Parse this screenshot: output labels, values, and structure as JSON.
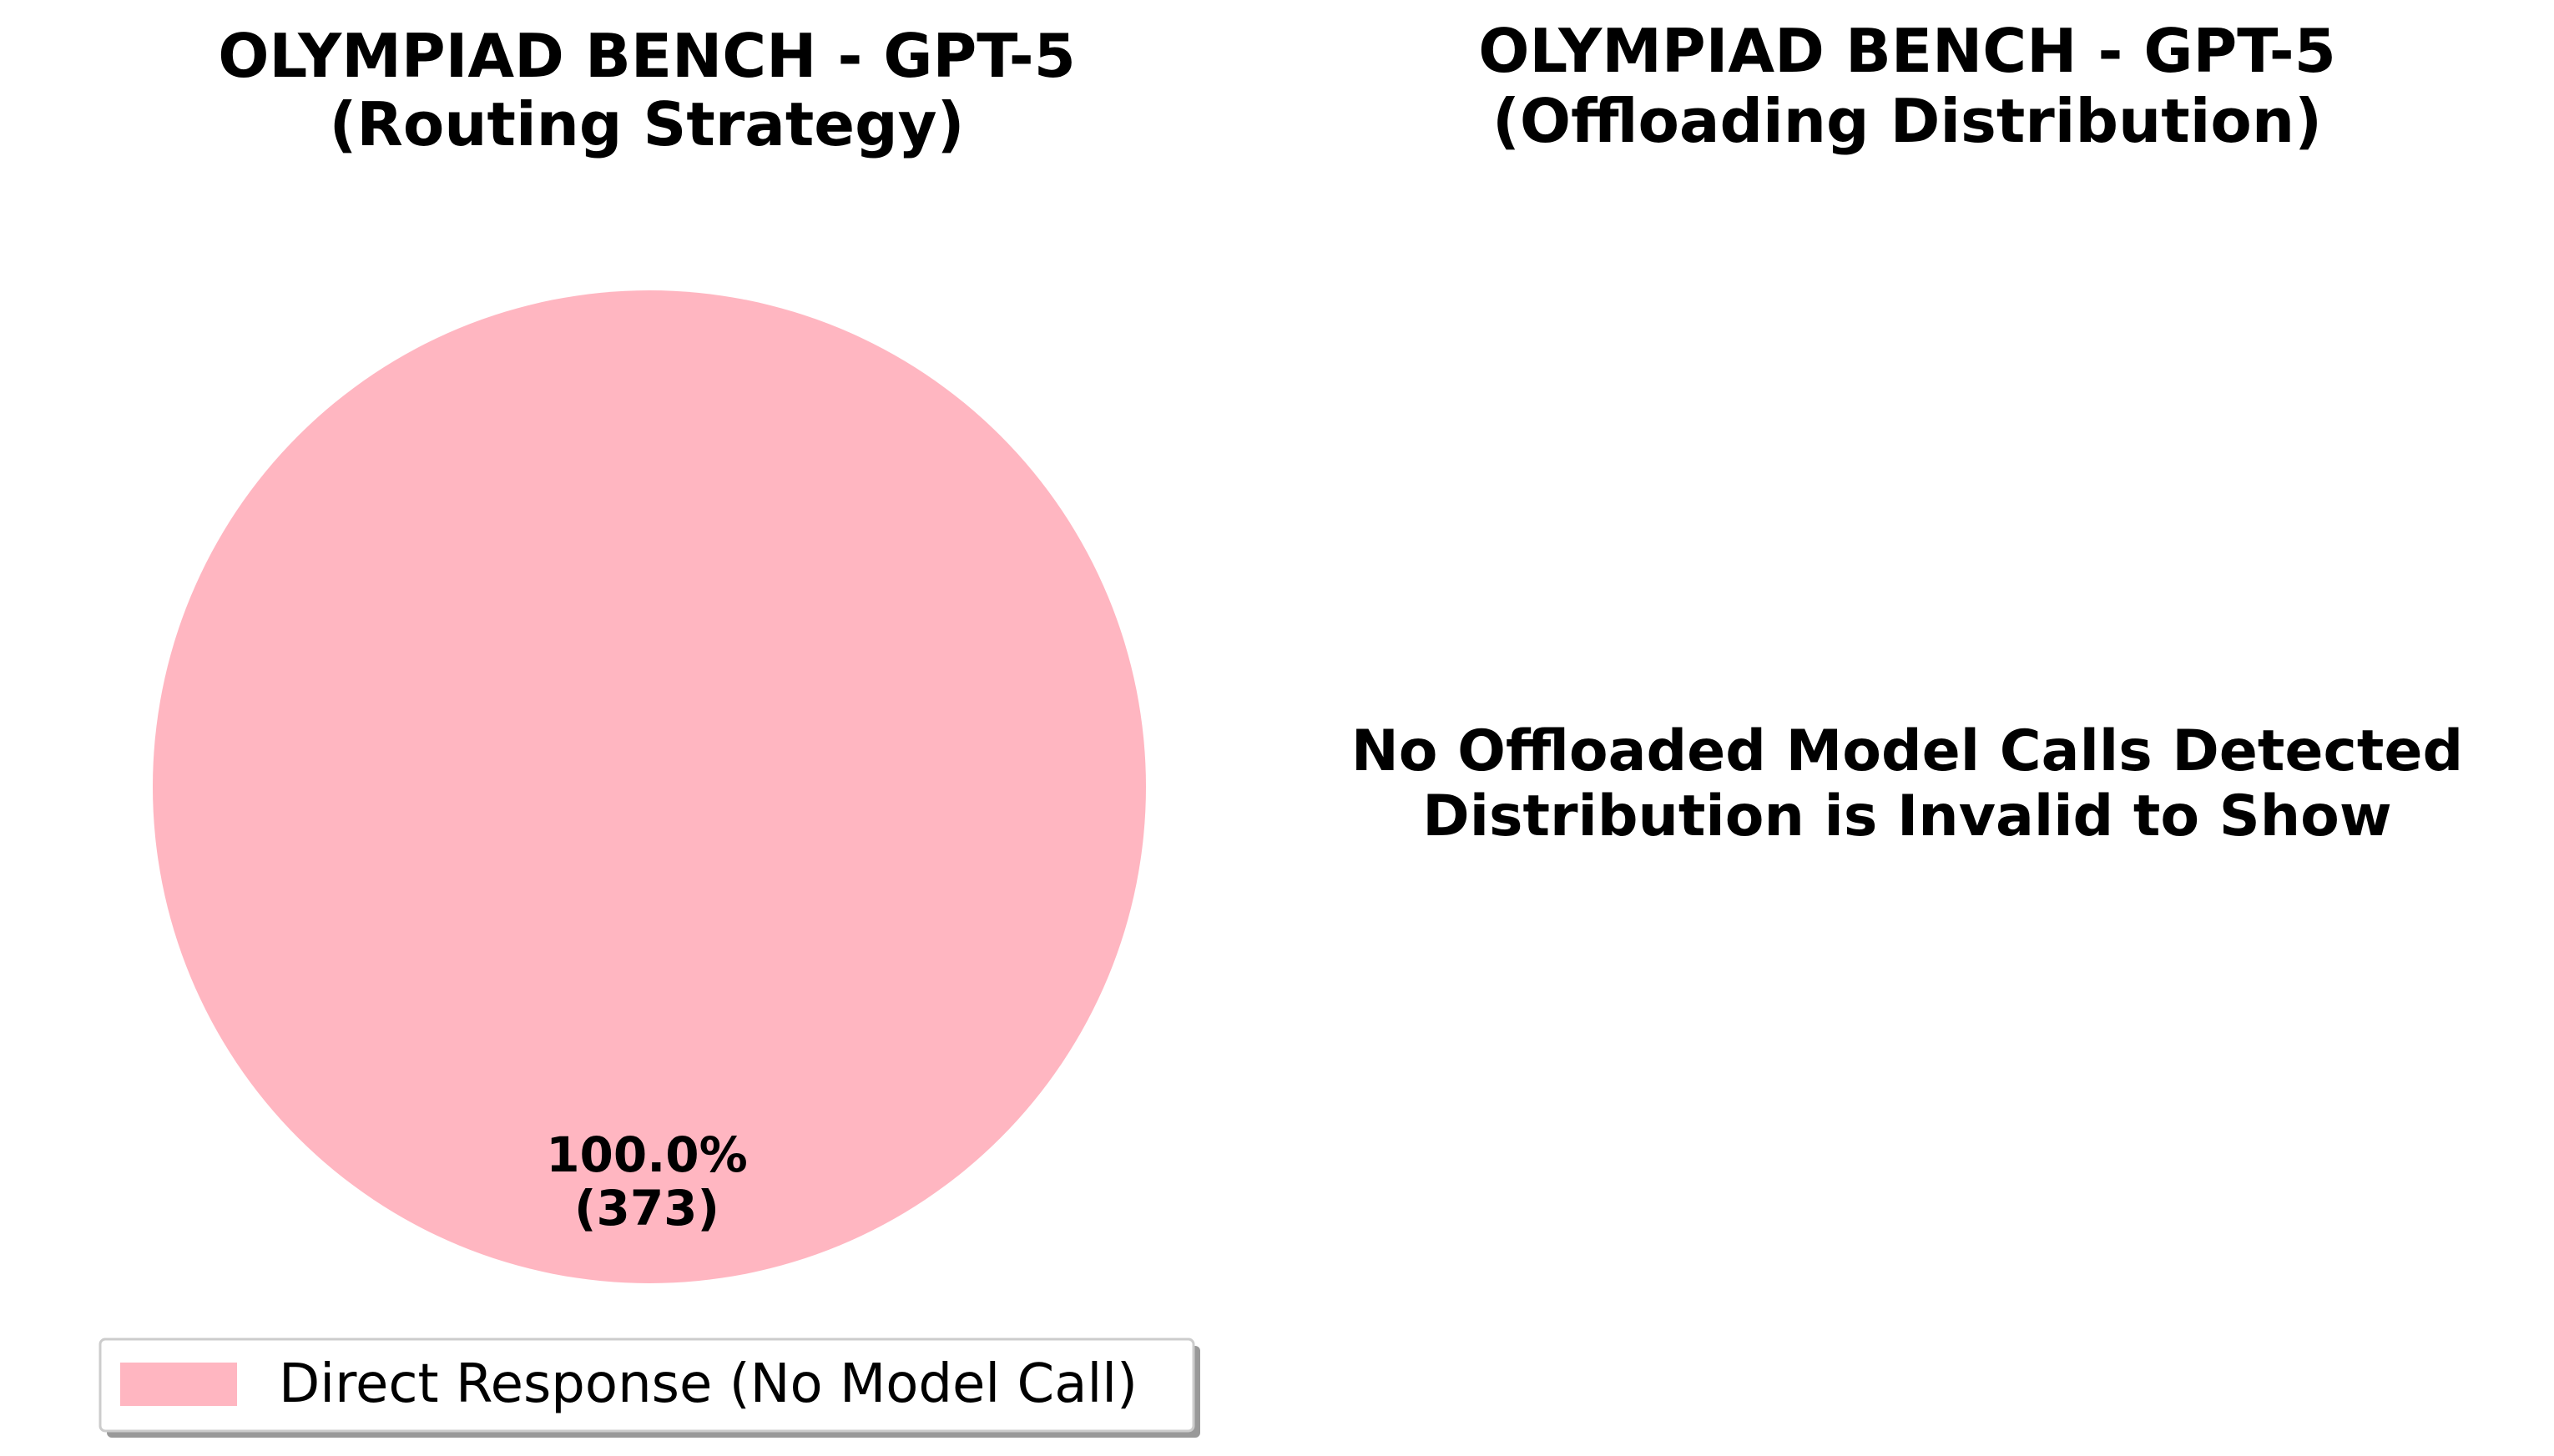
{
  "chart_data": [
    {
      "type": "pie",
      "title": "OLYMPIAD BENCH - GPT-5",
      "subtitle": "(Routing Strategy)",
      "slices": [
        {
          "label": "Direct Response (No Model Call)",
          "value": 373,
          "percent": 100.0,
          "percent_label": "100.0%",
          "count_label": "(373)",
          "color": "#FFB6C1"
        }
      ],
      "legend": {
        "placement": "bottom-center",
        "entries": [
          "Direct Response (No Model Call)"
        ]
      }
    },
    {
      "type": "pie",
      "title": "OLYMPIAD BENCH - GPT-5",
      "subtitle": "(Offloading Distribution)",
      "slices": [],
      "message_lines": [
        "No Offloaded Model Calls Detected",
        "Distribution is Invalid to Show"
      ]
    }
  ]
}
